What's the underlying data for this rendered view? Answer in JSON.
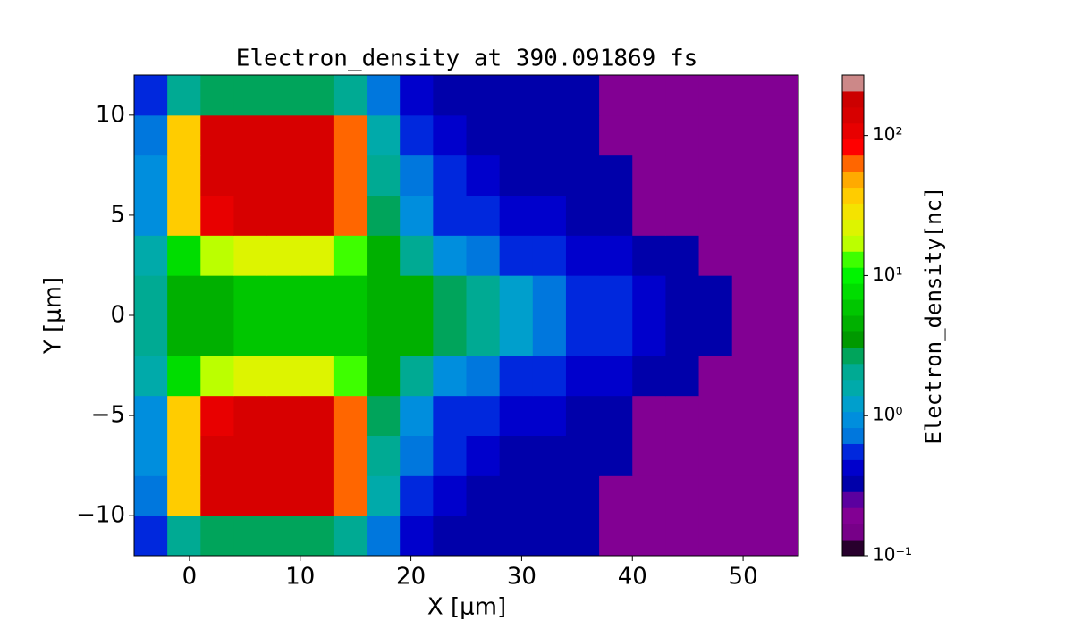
{
  "chart_data": {
    "type": "heatmap",
    "title": "Electron_density at 390.091869 fs",
    "x_label": "X [μm]",
    "y_label": "Y [μm]",
    "colorbar_label": "Electron_density[nc]",
    "xlim": [
      -5,
      55
    ],
    "ylim": [
      -12,
      12
    ],
    "xticks": [
      0,
      10,
      20,
      30,
      40,
      50
    ],
    "yticks": [
      {
        "value": -10,
        "label": "−10"
      },
      {
        "value": -5,
        "label": "−5"
      },
      0,
      5,
      10
    ],
    "xbins": [
      -5,
      -2,
      1,
      4,
      7,
      10,
      13,
      16,
      19,
      22,
      25,
      28,
      31,
      34,
      37,
      40,
      43,
      46,
      49,
      52,
      55
    ],
    "ybins": [
      -12,
      -10,
      -8,
      -6,
      -4,
      -2,
      0,
      2,
      4,
      6,
      8,
      10,
      12
    ],
    "z": [
      [
        0.5,
        2,
        3,
        3,
        3,
        3,
        2,
        0.8,
        0.4,
        0.3,
        0.3,
        0.3,
        0.3,
        0.3,
        0.2,
        0.2,
        0.2,
        0.2,
        0.2,
        0.2
      ],
      [
        0.8,
        40,
        150,
        150,
        150,
        150,
        60,
        1.5,
        0.6,
        0.4,
        0.3,
        0.3,
        0.3,
        0.3,
        0.2,
        0.2,
        0.2,
        0.2,
        0.2,
        0.2
      ],
      [
        0.9,
        40,
        150,
        150,
        150,
        150,
        60,
        2,
        0.8,
        0.5,
        0.4,
        0.3,
        0.3,
        0.3,
        0.3,
        0.2,
        0.2,
        0.2,
        0.2,
        0.2
      ],
      [
        1,
        40,
        120,
        150,
        150,
        150,
        60,
        2.5,
        1,
        0.6,
        0.5,
        0.4,
        0.4,
        0.3,
        0.3,
        0.2,
        0.2,
        0.2,
        0.2,
        0.2
      ],
      [
        1.5,
        8,
        15,
        20,
        20,
        20,
        12,
        4,
        2,
        1,
        0.7,
        0.6,
        0.5,
        0.4,
        0.4,
        0.3,
        0.3,
        0.2,
        0.2,
        0.2
      ],
      [
        2,
        4,
        5,
        6,
        6,
        6,
        6,
        5,
        4,
        3,
        2,
        1.2,
        0.8,
        0.6,
        0.5,
        0.4,
        0.3,
        0.3,
        0.2,
        0.2
      ],
      [
        2,
        4,
        5,
        6,
        6,
        6,
        6,
        5,
        4,
        3,
        2,
        1.2,
        0.8,
        0.6,
        0.5,
        0.4,
        0.3,
        0.3,
        0.2,
        0.2
      ],
      [
        1.5,
        8,
        15,
        20,
        20,
        20,
        12,
        4,
        2,
        1,
        0.7,
        0.6,
        0.5,
        0.4,
        0.4,
        0.3,
        0.3,
        0.2,
        0.2,
        0.2
      ],
      [
        1,
        40,
        120,
        150,
        150,
        150,
        60,
        2.5,
        1,
        0.6,
        0.5,
        0.4,
        0.4,
        0.3,
        0.3,
        0.2,
        0.2,
        0.2,
        0.2,
        0.2
      ],
      [
        0.9,
        40,
        150,
        150,
        150,
        150,
        60,
        2,
        0.8,
        0.5,
        0.4,
        0.3,
        0.3,
        0.3,
        0.3,
        0.2,
        0.2,
        0.2,
        0.2,
        0.2
      ],
      [
        0.8,
        40,
        150,
        150,
        150,
        150,
        60,
        1.5,
        0.6,
        0.4,
        0.3,
        0.3,
        0.3,
        0.3,
        0.2,
        0.2,
        0.2,
        0.2,
        0.2,
        0.2
      ],
      [
        0.5,
        2,
        3,
        3,
        3,
        3,
        2,
        0.8,
        0.4,
        0.3,
        0.3,
        0.3,
        0.3,
        0.3,
        0.2,
        0.2,
        0.2,
        0.2,
        0.2,
        0.2
      ]
    ],
    "color_scale": "log",
    "clim": [
      0.1,
      270
    ],
    "cticks": [
      {
        "value": 0.1,
        "label": "10⁻¹"
      },
      {
        "value": 1,
        "label": "10⁰"
      },
      {
        "value": 10,
        "label": "10¹"
      },
      {
        "value": 100,
        "label": "10²"
      }
    ],
    "colormap": [
      "#000000",
      "#770088",
      "#880099",
      "#0000aa",
      "#0000dd",
      "#0077dd",
      "#0099dd",
      "#00aaaa",
      "#00aa88",
      "#009900",
      "#00bb00",
      "#00dd00",
      "#00ff00",
      "#bbff00",
      "#eeee00",
      "#ffcc00",
      "#ff9900",
      "#ff0000",
      "#dd0000",
      "#cc0000",
      "#cccccc"
    ],
    "colorbar_levels": 30
  }
}
